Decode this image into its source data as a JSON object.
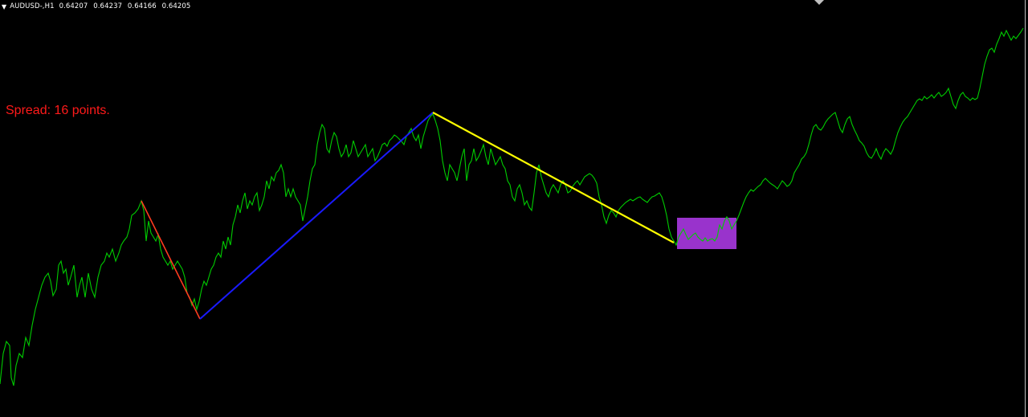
{
  "header": {
    "collapse_icon": "triangle-down-icon",
    "symbol": "AUDUSD-,H1",
    "open": "0.64207",
    "high": "0.64237",
    "low": "0.64166",
    "close": "0.64205"
  },
  "spread_label": "Spread: 16 points.",
  "colors": {
    "background": "#000000",
    "price_line": "#00cc00",
    "leg1": "#ff3b1f",
    "leg2": "#1a1aff",
    "leg3": "#ffff00",
    "zone": "#9933cc",
    "spread_text": "#ff1a1a",
    "header_text": "#ffffff"
  }
}
